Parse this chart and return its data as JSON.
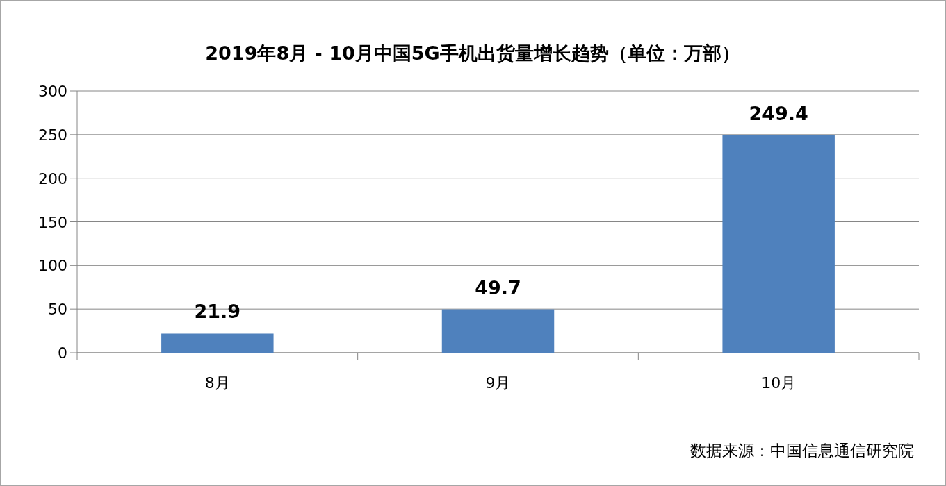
{
  "chart_data": {
    "type": "bar",
    "title": "2019年8月 - 10月中国5G手机出货量增长趋势（单位：万部）",
    "categories": [
      "8月",
      "9月",
      "10月"
    ],
    "values": [
      21.9,
      49.7,
      249.4
    ],
    "color": "#4f81bd",
    "ylim": [
      0,
      300
    ],
    "yticks": [
      0,
      50,
      100,
      150,
      200,
      250,
      300
    ],
    "grid": "y",
    "data_labels": true,
    "annotations": [
      "数据来源：中国信息通信研究院"
    ]
  }
}
